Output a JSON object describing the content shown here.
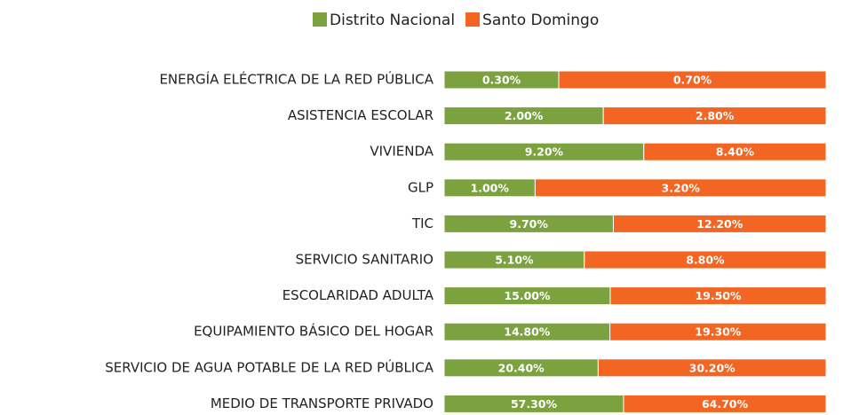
{
  "chart_data": {
    "type": "bar",
    "orientation": "horizontal",
    "stacking": "percent",
    "categories": [
      "ENERGÍA ELÉCTRICA DE LA RED PÚBLICA",
      "ASISTENCIA ESCOLAR",
      "VIVIENDA",
      "GLP",
      "TIC",
      "SERVICIO SANITARIO",
      "ESCOLARIDAD ADULTA",
      "EQUIPAMIENTO BÁSICO DEL HOGAR",
      "SERVICIO DE AGUA POTABLE DE LA RED PÚBLICA",
      "MEDIO DE TRANSPORTE PRIVADO"
    ],
    "series": [
      {
        "name": "Distrito Nacional",
        "color": "#7ba23f",
        "values": [
          0.3,
          2.0,
          9.2,
          1.0,
          9.7,
          5.1,
          15.0,
          14.8,
          20.4,
          57.3
        ],
        "value_labels": [
          "0.30%",
          "2.00%",
          "9.20%",
          "1.00%",
          "9.70%",
          "5.10%",
          "15.00%",
          "14.80%",
          "20.40%",
          "57.30%"
        ]
      },
      {
        "name": "Santo Domingo",
        "color": "#f26522",
        "values": [
          0.7,
          2.8,
          8.4,
          3.2,
          12.2,
          8.8,
          19.5,
          19.3,
          30.2,
          64.7
        ],
        "value_labels": [
          "0.70%",
          "2.80%",
          "8.40%",
          "3.20%",
          "12.20%",
          "8.80%",
          "19.50%",
          "19.30%",
          "30.20%",
          "64.70%"
        ]
      }
    ],
    "legend": "top"
  }
}
